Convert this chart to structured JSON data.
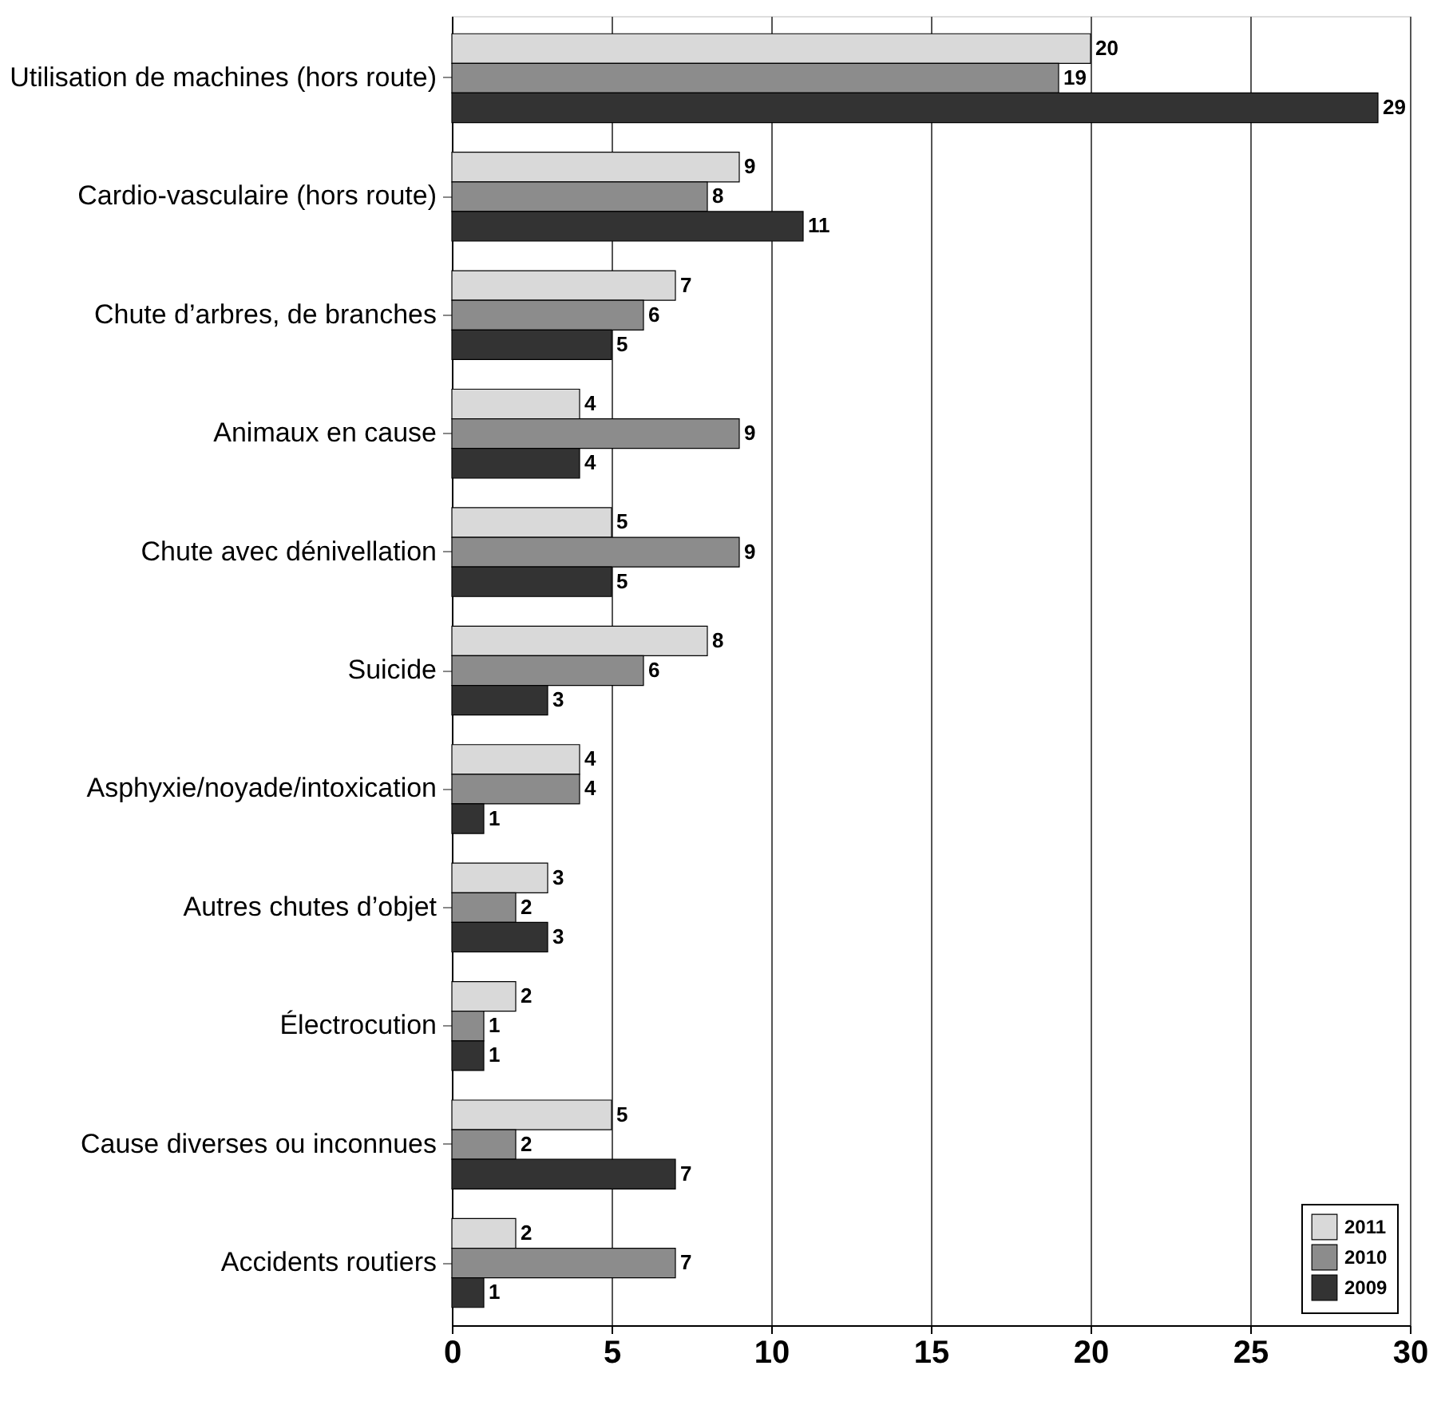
{
  "chart_data": {
    "type": "bar",
    "orientation": "horizontal",
    "categories": [
      "Utilisation de machines (hors route)",
      "Cardio-vasculaire (hors route)",
      "Chute d’arbres, de branches",
      "Animaux en cause",
      "Chute avec dénivellation",
      "Suicide",
      "Asphyxie/noyade/intoxication",
      "Autres chutes d’objet",
      "Électrocution",
      "Cause diverses ou inconnues",
      "Accidents routiers"
    ],
    "series": [
      {
        "name": "2011",
        "color": "#d9d9d9",
        "values": [
          20,
          9,
          7,
          4,
          5,
          8,
          4,
          3,
          2,
          5,
          2
        ]
      },
      {
        "name": "2010",
        "color": "#8c8c8c",
        "values": [
          19,
          8,
          6,
          9,
          9,
          6,
          4,
          2,
          1,
          2,
          7
        ]
      },
      {
        "name": "2009",
        "color": "#333333",
        "values": [
          29,
          11,
          5,
          4,
          5,
          3,
          1,
          3,
          1,
          7,
          1
        ]
      }
    ],
    "xlim": [
      0,
      30
    ],
    "xticks": [
      0,
      5,
      10,
      15,
      20,
      25,
      30
    ],
    "grid": "x",
    "legend": "bottom right",
    "data_labels": true
  }
}
